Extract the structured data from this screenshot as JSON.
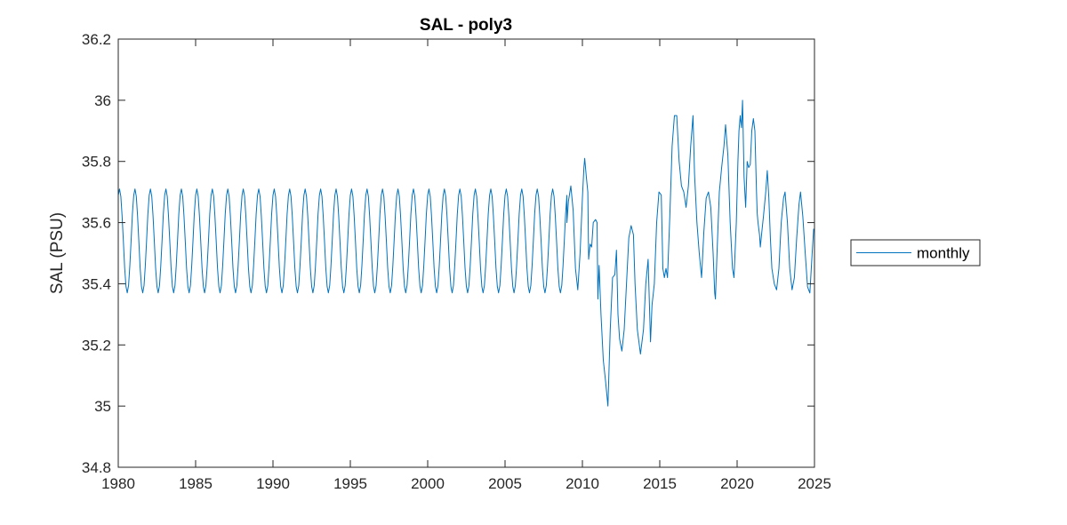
{
  "chart_data": {
    "type": "line",
    "title": "SAL - poly3",
    "xlabel": "",
    "ylabel": "SAL (PSU)",
    "xlim": [
      1980,
      2025
    ],
    "ylim": [
      34.8,
      36.2
    ],
    "xticks": [
      "1980",
      "1985",
      "1990",
      "1995",
      "2000",
      "2005",
      "2010",
      "2015",
      "2020",
      "2025"
    ],
    "yticks": [
      "34.8",
      "35",
      "35.2",
      "35.4",
      "35.6",
      "35.8",
      "36",
      "36.2"
    ],
    "grid": false,
    "legend": {
      "position": "outside-right",
      "entries": [
        "monthly"
      ]
    },
    "series": [
      {
        "name": "monthly",
        "color": "#0072BD",
        "seasonal_cycle": {
          "years": [
            1980,
            2009
          ],
          "mean": 35.54,
          "amplitude": 0.17,
          "peak_fraction_of_year": 0.08
        },
        "points": [
          [
            2009.0,
            35.6
          ],
          [
            2009.1,
            35.67
          ],
          [
            2009.25,
            35.72
          ],
          [
            2009.4,
            35.64
          ],
          [
            2009.55,
            35.45
          ],
          [
            2009.7,
            35.38
          ],
          [
            2009.85,
            35.5
          ],
          [
            2010.0,
            35.68
          ],
          [
            2010.1,
            35.78
          ],
          [
            2010.15,
            35.81
          ],
          [
            2010.25,
            35.75
          ],
          [
            2010.35,
            35.7
          ],
          [
            2010.4,
            35.48
          ],
          [
            2010.5,
            35.53
          ],
          [
            2010.6,
            35.52
          ],
          [
            2010.7,
            35.6
          ],
          [
            2010.85,
            35.61
          ],
          [
            2010.95,
            35.6
          ],
          [
            2011.0,
            35.35
          ],
          [
            2011.08,
            35.46
          ],
          [
            2011.2,
            35.3
          ],
          [
            2011.35,
            35.15
          ],
          [
            2011.5,
            35.08
          ],
          [
            2011.65,
            35.0
          ],
          [
            2011.8,
            35.25
          ],
          [
            2011.95,
            35.42
          ],
          [
            2012.1,
            35.43
          ],
          [
            2012.2,
            35.51
          ],
          [
            2012.3,
            35.3
          ],
          [
            2012.4,
            35.22
          ],
          [
            2012.55,
            35.18
          ],
          [
            2012.7,
            35.25
          ],
          [
            2012.85,
            35.4
          ],
          [
            2013.0,
            35.55
          ],
          [
            2013.15,
            35.59
          ],
          [
            2013.3,
            35.56
          ],
          [
            2013.4,
            35.4
          ],
          [
            2013.55,
            35.25
          ],
          [
            2013.75,
            35.17
          ],
          [
            2013.95,
            35.25
          ],
          [
            2014.1,
            35.4
          ],
          [
            2014.25,
            35.48
          ],
          [
            2014.4,
            35.21
          ],
          [
            2014.5,
            35.33
          ],
          [
            2014.65,
            35.4
          ],
          [
            2014.8,
            35.6
          ],
          [
            2014.95,
            35.7
          ],
          [
            2015.1,
            35.69
          ],
          [
            2015.2,
            35.45
          ],
          [
            2015.3,
            35.42
          ],
          [
            2015.4,
            35.45
          ],
          [
            2015.5,
            35.42
          ],
          [
            2015.65,
            35.62
          ],
          [
            2015.8,
            35.85
          ],
          [
            2015.95,
            35.95
          ],
          [
            2016.1,
            35.95
          ],
          [
            2016.25,
            35.8
          ],
          [
            2016.4,
            35.72
          ],
          [
            2016.55,
            35.7
          ],
          [
            2016.7,
            35.65
          ],
          [
            2016.85,
            35.72
          ],
          [
            2017.0,
            35.85
          ],
          [
            2017.15,
            35.95
          ],
          [
            2017.25,
            35.76
          ],
          [
            2017.4,
            35.6
          ],
          [
            2017.55,
            35.5
          ],
          [
            2017.7,
            35.42
          ],
          [
            2017.85,
            35.57
          ],
          [
            2018.0,
            35.68
          ],
          [
            2018.15,
            35.7
          ],
          [
            2018.3,
            35.65
          ],
          [
            2018.45,
            35.5
          ],
          [
            2018.55,
            35.37
          ],
          [
            2018.6,
            35.35
          ],
          [
            2018.7,
            35.5
          ],
          [
            2018.85,
            35.7
          ],
          [
            2019.0,
            35.78
          ],
          [
            2019.15,
            35.85
          ],
          [
            2019.25,
            35.92
          ],
          [
            2019.4,
            35.82
          ],
          [
            2019.55,
            35.6
          ],
          [
            2019.7,
            35.45
          ],
          [
            2019.8,
            35.42
          ],
          [
            2019.95,
            35.6
          ],
          [
            2020.05,
            35.8
          ],
          [
            2020.12,
            35.9
          ],
          [
            2020.2,
            35.95
          ],
          [
            2020.28,
            35.91
          ],
          [
            2020.35,
            36.0
          ],
          [
            2020.45,
            35.75
          ],
          [
            2020.55,
            35.65
          ],
          [
            2020.65,
            35.8
          ],
          [
            2020.75,
            35.78
          ],
          [
            2020.85,
            35.79
          ],
          [
            2020.95,
            35.9
          ],
          [
            2021.05,
            35.94
          ],
          [
            2021.15,
            35.9
          ],
          [
            2021.25,
            35.7
          ],
          [
            2021.3,
            35.63
          ],
          [
            2021.35,
            35.6
          ],
          [
            2021.45,
            35.56
          ],
          [
            2021.5,
            35.52
          ],
          [
            2021.6,
            35.57
          ],
          [
            2021.7,
            35.62
          ],
          [
            2021.85,
            35.7
          ],
          [
            2021.95,
            35.77
          ],
          [
            2022.05,
            35.68
          ],
          [
            2022.15,
            35.55
          ],
          [
            2022.25,
            35.45
          ],
          [
            2022.4,
            35.4
          ],
          [
            2022.55,
            35.38
          ],
          [
            2022.7,
            35.45
          ],
          [
            2022.85,
            35.6
          ],
          [
            2023.0,
            35.68
          ],
          [
            2023.1,
            35.7
          ],
          [
            2023.25,
            35.6
          ],
          [
            2023.4,
            35.45
          ],
          [
            2023.55,
            35.38
          ],
          [
            2023.7,
            35.42
          ],
          [
            2023.85,
            35.55
          ],
          [
            2024.0,
            35.66
          ],
          [
            2024.1,
            35.7
          ],
          [
            2024.25,
            35.62
          ],
          [
            2024.4,
            35.5
          ],
          [
            2024.55,
            35.39
          ],
          [
            2024.7,
            35.37
          ],
          [
            2024.85,
            35.5
          ],
          [
            2024.95,
            35.58
          ]
        ]
      }
    ]
  }
}
